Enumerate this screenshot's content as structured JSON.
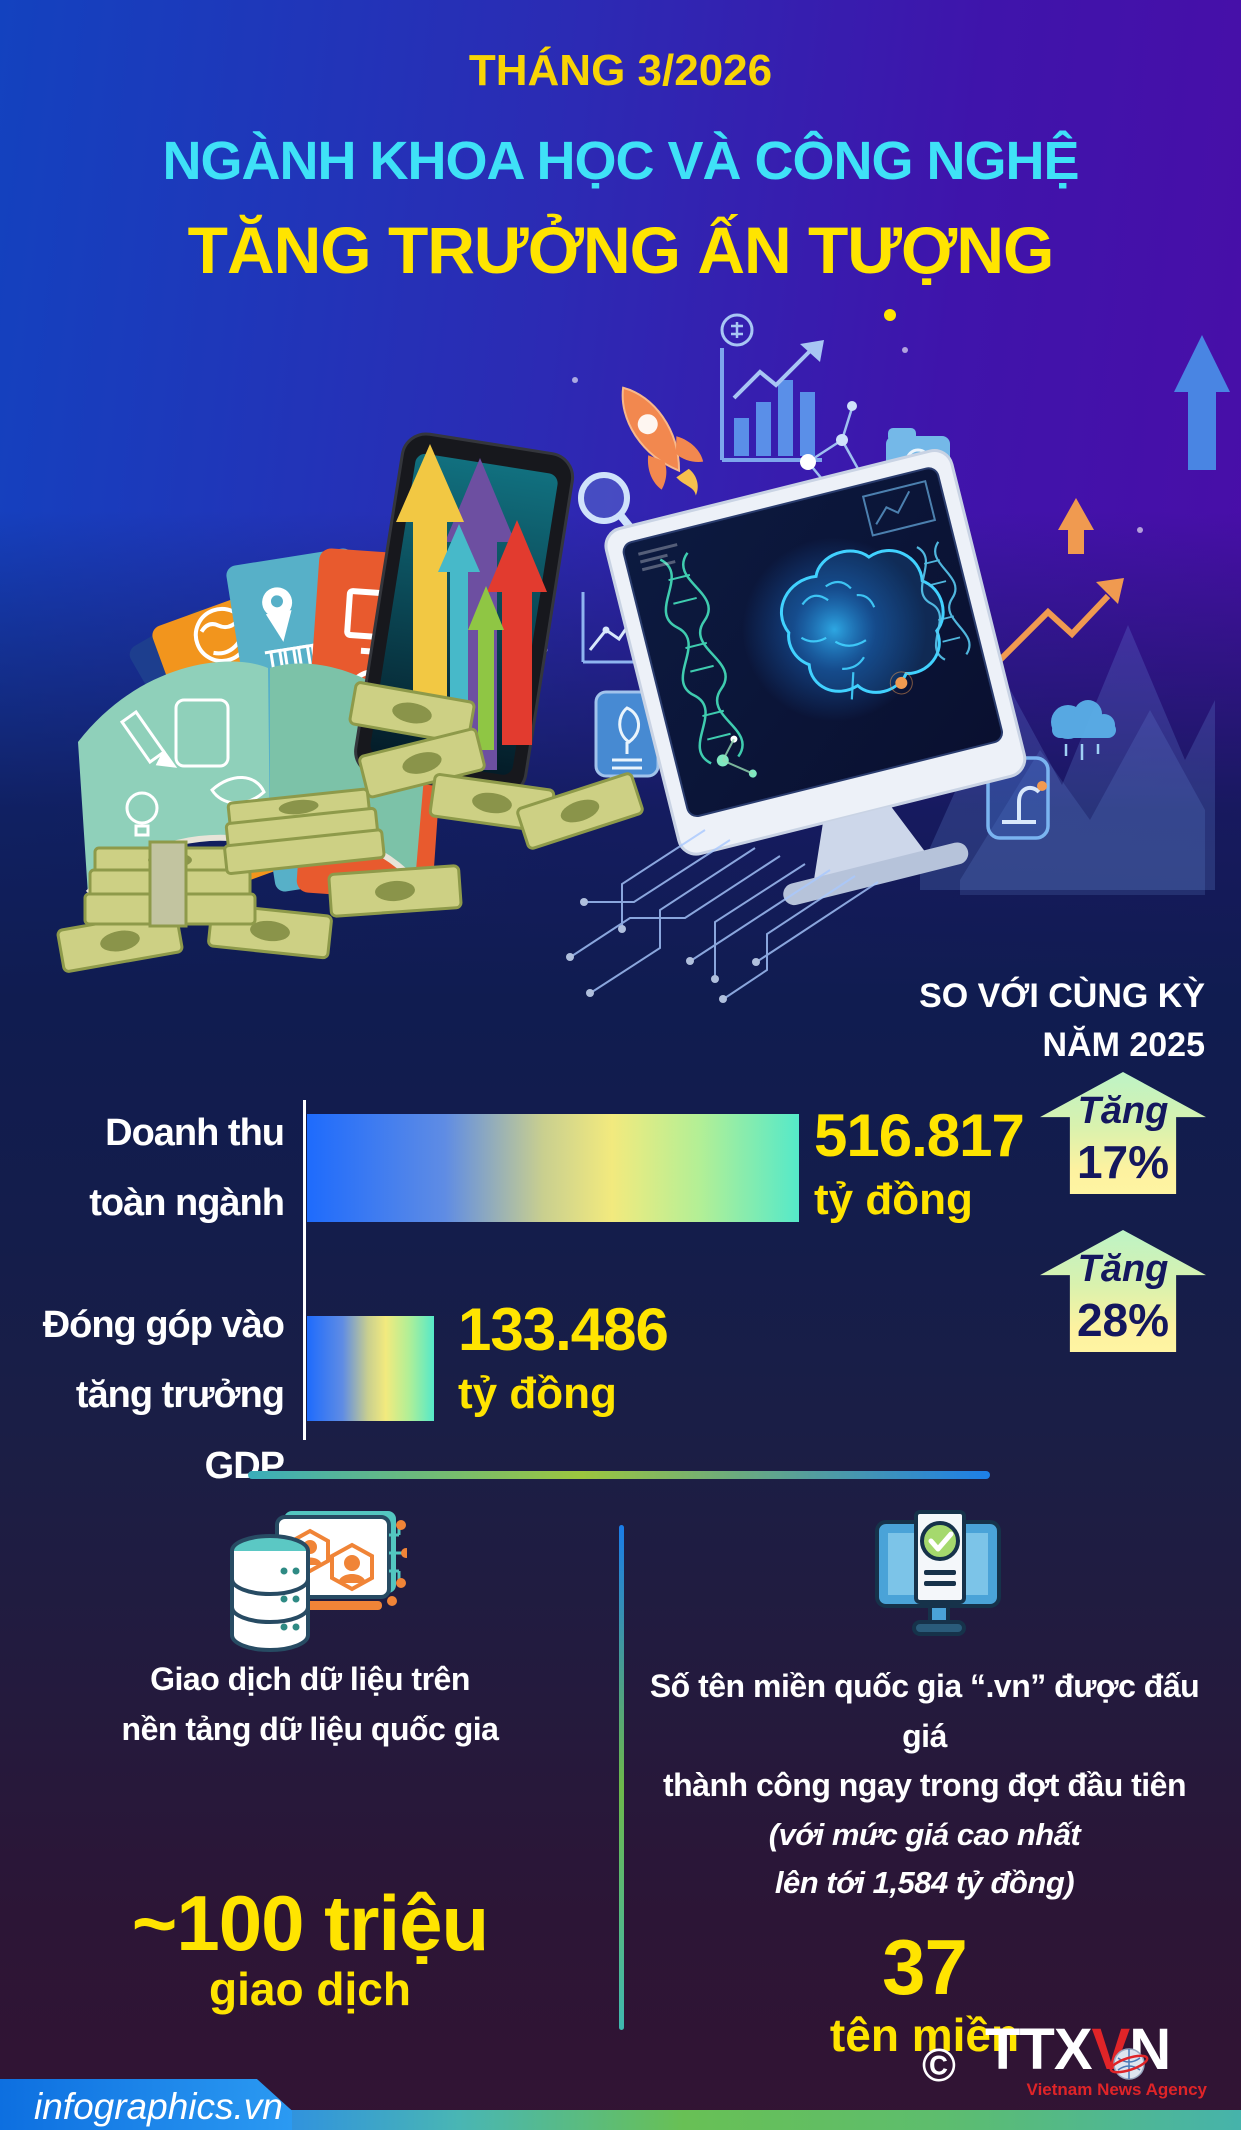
{
  "header": {
    "kicker": "THÁNG 3/2026",
    "title": "NGÀNH KHOA HỌC VÀ CÔNG NGHỆ",
    "subtitle": "TĂNG TRƯỞNG ẤN TƯỢNG"
  },
  "chart_data": {
    "type": "bar",
    "orientation": "horizontal",
    "note_line1": "SO VỚI CÙNG KỲ",
    "note_line2": "NĂM 2025",
    "categories": [
      "Doanh thu toàn ngành",
      "Đóng góp vào tăng trưởng GDP"
    ],
    "values": [
      516817,
      133486
    ],
    "unit": "tỷ đồng",
    "xlim": [
      0,
      560000
    ],
    "grid": false,
    "bar_gradient": [
      "#1e6bfd",
      "#f2ea7e",
      "#55e9c9"
    ],
    "rows": [
      {
        "label1": "Doanh thu",
        "label2": "toàn ngành",
        "value_label": "516.817",
        "unit": "tỷ đồng",
        "badge_word": "Tăng",
        "badge_percent": "17%"
      },
      {
        "label1": "Đóng góp vào",
        "label2": "tăng trưởng GDP",
        "value_label": "133.486",
        "unit": "tỷ đồng",
        "badge_word": "Tăng",
        "badge_percent": "28%"
      }
    ]
  },
  "panels": {
    "left": {
      "desc_line1": "Giao dịch dữ liệu trên",
      "desc_line2": "nền tảng dữ liệu quốc gia",
      "value": "~100 triệu",
      "unit": "giao dịch"
    },
    "right": {
      "desc_line1": "Số tên miền quốc gia “.vn” được đấu giá",
      "desc_line2": "thành công ngay trong đợt đầu tiên",
      "note_line1": "(với mức giá cao nhất",
      "note_line2": "lên tới 1,584 tỷ đồng)",
      "value": "37",
      "unit": "tên miền"
    }
  },
  "footer": {
    "site": "infographics.vn",
    "copyright": "©",
    "logo_ttx": "TTX",
    "logo_v": "V",
    "logo_n": "N",
    "agency": "Vietnam News Agency"
  },
  "colors": {
    "accent_yellow": "#ffe400",
    "kicker_yellow": "#f8d405",
    "accent_cyan": "#3fe1f7",
    "badge_text": "#14175e",
    "badge_gradient": [
      "#bdf3c6",
      "#fff4a2"
    ],
    "divider_gradient": [
      "#3aaebb",
      "#9cc63e",
      "#1c7fe8"
    ],
    "footer_strip": [
      "#1b83ef",
      "#68c055",
      "#46b3ab"
    ],
    "footer_banner_blue": "#1781f0",
    "logo_red": "#e02428",
    "bg_top_left": "#1342bf",
    "bg_top_right": "#4d0ba6",
    "bg_bottom": "#321433"
  }
}
